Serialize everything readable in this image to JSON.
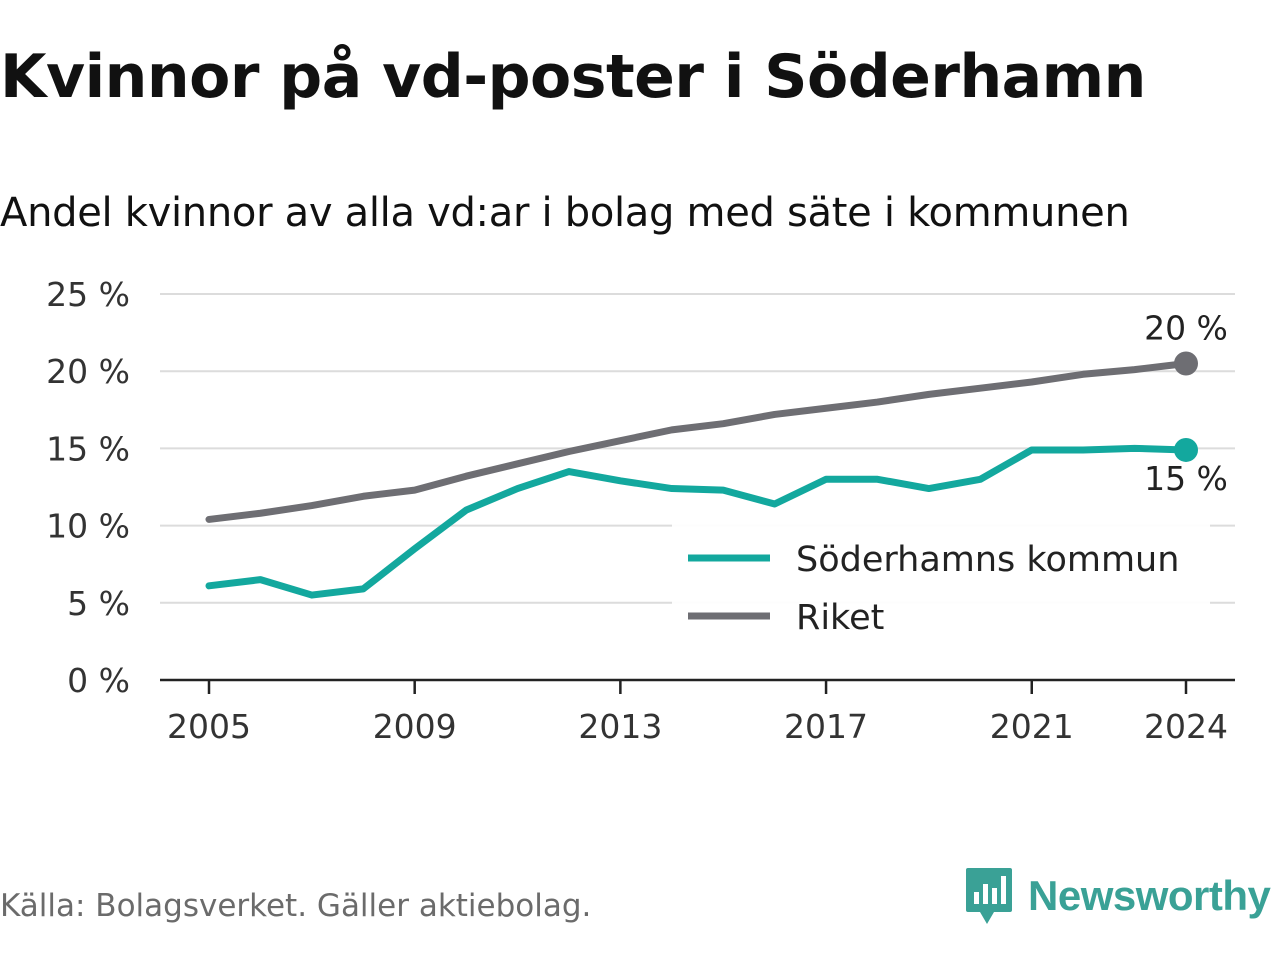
{
  "header": {
    "title": "Kvinnor på vd-poster i Söderhamn",
    "subtitle": "Andel kvinnor av alla vd:ar i bolag med säte i kommunen"
  },
  "footer": {
    "source": "Källa: Bolagsverket. Gäller aktiebolag.",
    "brand_name": "Newsworthy",
    "brand_icon": "bar-chart-icon",
    "brand_color": "#3aa196"
  },
  "chart_data": {
    "type": "line",
    "x": [
      2005,
      2006,
      2007,
      2008,
      2009,
      2010,
      2011,
      2012,
      2013,
      2014,
      2015,
      2016,
      2017,
      2018,
      2019,
      2020,
      2021,
      2022,
      2023,
      2024
    ],
    "x_ticks": [
      "2005",
      "2009",
      "2013",
      "2017",
      "2021",
      "2024"
    ],
    "ylim": [
      0,
      25
    ],
    "y_ticks": [
      0,
      5,
      10,
      15,
      20,
      25
    ],
    "y_tick_labels": [
      "0 %",
      "5 %",
      "10 %",
      "15 %",
      "20 %",
      "25 %"
    ],
    "grid": true,
    "legend_position": "bottom-right",
    "series": [
      {
        "name": "Söderhamns kommun",
        "color": "#13a89e",
        "values": [
          6.1,
          6.5,
          5.5,
          5.9,
          8.5,
          11.0,
          12.4,
          13.5,
          12.9,
          12.4,
          12.3,
          11.4,
          13.0,
          13.0,
          12.4,
          13.0,
          14.9,
          14.9,
          15.0,
          14.9
        ],
        "end_label": "15 %"
      },
      {
        "name": "Riket",
        "color": "#6e6e73",
        "values": [
          10.4,
          10.8,
          11.3,
          11.9,
          12.3,
          13.2,
          14.0,
          14.8,
          15.5,
          16.2,
          16.6,
          17.2,
          17.6,
          18.0,
          18.5,
          18.9,
          19.3,
          19.8,
          20.1,
          20.5
        ],
        "end_label": "20 %"
      }
    ]
  }
}
